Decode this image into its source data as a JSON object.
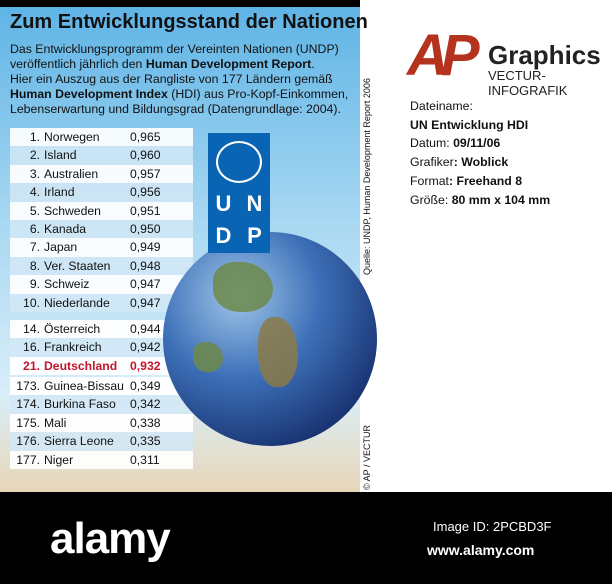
{
  "title": "Zum Entwicklungsstand der Nationen",
  "intro": {
    "l1": "Das Entwicklungsprogramm der Vereinten Nationen (UNDP)",
    "l2a": "veröffentlich jährlich den ",
    "l2b": "Human Development  Report",
    "l2c": ".",
    "l3": "Hier ein Auszug aus der Rangliste von 177 Ländern gemäß",
    "l4a": "Human Development Index",
    "l4b": " (HDI) aus Pro-Kopf-Einkommen,",
    "l5": "Lebenserwartung und Bildungsgrad (Datengrundlage: 2004)."
  },
  "groups": [
    [
      {
        "rank": "1.",
        "name": "Norwegen",
        "value": "0,965"
      },
      {
        "rank": "2.",
        "name": "Island",
        "value": "0,960"
      },
      {
        "rank": "3.",
        "name": "Australien",
        "value": "0,957"
      },
      {
        "rank": "4.",
        "name": "Irland",
        "value": "0,956"
      },
      {
        "rank": "5.",
        "name": "Schweden",
        "value": "0,951"
      },
      {
        "rank": "6.",
        "name": "Kanada",
        "value": "0,950"
      },
      {
        "rank": "7.",
        "name": "Japan",
        "value": "0,949"
      },
      {
        "rank": "8.",
        "name": "Ver. Staaten",
        "value": "0,948"
      },
      {
        "rank": "9.",
        "name": "Schweiz",
        "value": "0,947"
      },
      {
        "rank": "10.",
        "name": "Niederlande",
        "value": "0,947"
      }
    ],
    [
      {
        "rank": "14.",
        "name": "Österreich",
        "value": "0,944"
      },
      {
        "rank": "16.",
        "name": "Frankreich",
        "value": "0,942"
      },
      {
        "rank": "21.",
        "name": "Deutschland",
        "value": "0,932",
        "highlight": true
      }
    ],
    [
      {
        "rank": "173.",
        "name": "Guinea-Bissau",
        "value": "0,349"
      },
      {
        "rank": "174.",
        "name": "Burkina Faso",
        "value": "0,342"
      },
      {
        "rank": "175.",
        "name": "Mali",
        "value": "0,338"
      },
      {
        "rank": "176.",
        "name": "Sierra Leone",
        "value": "0,335"
      },
      {
        "rank": "177.",
        "name": "Niger",
        "value": "0,311"
      }
    ]
  ],
  "undp": {
    "u": "U",
    "n": "N",
    "d": "D",
    "p": "P"
  },
  "source": "Quelle: UNDP, Human Development Report 2006",
  "copyright": "© AP / VECTUR",
  "brand": {
    "ap": "AP",
    "graphics": "Graphics",
    "sub": "VECTUR-INFOGRAFIK"
  },
  "meta": {
    "filename_label": "Dateiname:",
    "filename": "UN Entwicklung HDI",
    "date_label": "Datum: ",
    "date": "09/11/06",
    "author_label": "Grafiker",
    "author": ": Woblick",
    "format_label": "Format",
    "format": ": Freehand 8",
    "size_label": "Größe: ",
    "size": "80 mm x 104 mm"
  },
  "footer": {
    "logo": "alamy",
    "image_id": "Image ID: 2PCBD3F",
    "url": "www.alamy.com"
  },
  "colors": {
    "highlight": "#c3162a",
    "ap_red": "#b5321e",
    "undp_blue": "#0a64b4"
  }
}
